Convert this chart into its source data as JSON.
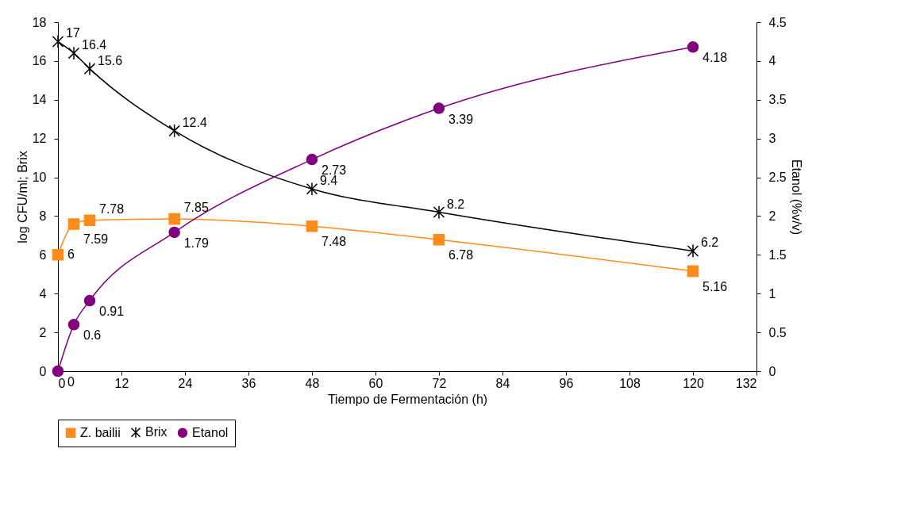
{
  "chart_data": {
    "type": "line",
    "xlabel": "Tiempo de Fermentación (h)",
    "ylabel": "log CFU/ml; Brix",
    "y2label": "Etanol (%v/v)",
    "xlim": [
      0,
      132
    ],
    "xticks": [
      0,
      12,
      24,
      36,
      48,
      60,
      72,
      84,
      96,
      108,
      120,
      132
    ],
    "ylim": [
      0,
      18
    ],
    "yticks": [
      0,
      2,
      4,
      6,
      8,
      10,
      12,
      14,
      16,
      18
    ],
    "y2lim": [
      0,
      4.5
    ],
    "y2ticks": [
      0,
      0.5,
      1,
      1.5,
      2,
      2.5,
      3,
      3.5,
      4,
      4.5
    ],
    "x": [
      0,
      3,
      6,
      22,
      48,
      72,
      120
    ],
    "series": [
      {
        "name": "Z. bailii",
        "color": "#ff8c1a",
        "marker": "square",
        "values": [
          6,
          7.59,
          7.78,
          7.85,
          7.48,
          6.78,
          5.16
        ]
      },
      {
        "name": "Brix",
        "color": "#000000",
        "marker": "cross",
        "values": [
          17,
          16.4,
          15.6,
          12.4,
          9.4,
          8.2,
          6.2
        ]
      },
      {
        "name": "Etanol",
        "color": "#800080",
        "marker": "circle",
        "axis": "y2",
        "values": [
          0,
          0.6,
          0.91,
          1.79,
          2.73,
          3.39,
          4.18
        ]
      }
    ],
    "data_labels": true,
    "grid": false,
    "legend": "bottom",
    "line_style": "solid"
  }
}
